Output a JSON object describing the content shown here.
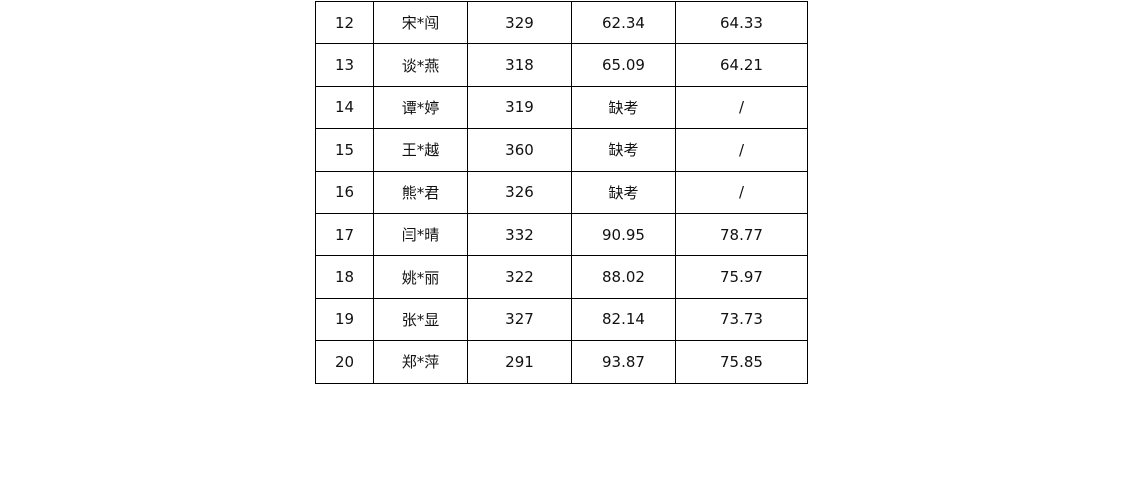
{
  "table": {
    "rows": [
      [
        "12",
        "宋*闯",
        "329",
        "62.34",
        "64.33"
      ],
      [
        "13",
        "谈*燕",
        "318",
        "65.09",
        "64.21"
      ],
      [
        "14",
        "谭*婷",
        "319",
        "缺考",
        "/"
      ],
      [
        "15",
        "王*越",
        "360",
        "缺考",
        "/"
      ],
      [
        "16",
        "熊*君",
        "326",
        "缺考",
        "/"
      ],
      [
        "17",
        "闫*晴",
        "332",
        "90.95",
        "78.77"
      ],
      [
        "18",
        "姚*丽",
        "322",
        "88.02",
        "75.97"
      ],
      [
        "19",
        "张*显",
        "327",
        "82.14",
        "73.73"
      ],
      [
        "20",
        "郑*萍",
        "291",
        "93.87",
        "75.85"
      ]
    ]
  }
}
